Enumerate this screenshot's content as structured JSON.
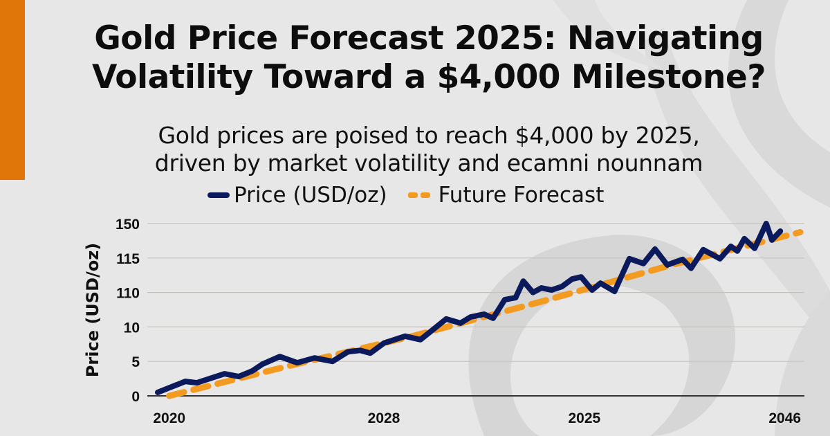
{
  "header": {
    "title_line1": "Gold Price Forecast 2025: Navigating",
    "title_line2": "Volatility Toward a $4,000 Milestone?",
    "subtitle_line1": "Gold prices are poised to reach $4,000 by 2025,",
    "subtitle_line2": "driven by market volatility and ecamni nounnam"
  },
  "colors": {
    "accent": "#e0760a",
    "price_series": "#0b1a5c",
    "forecast_series": "#f39a21",
    "background": "#e7e7e7"
  },
  "chart_data": {
    "type": "line",
    "title": "Gold Price Forecast 2025: Navigating Volatility Toward a $4,000 Milestone?",
    "xlabel": "",
    "ylabel": "Price (USD/oz)",
    "x_tick_labels": [
      "2020",
      "2028",
      "2025",
      "2046"
    ],
    "x_tick_positions": [
      0.018,
      0.352,
      0.664,
      0.976
    ],
    "y_tick_labels": [
      "0",
      "5",
      "10",
      "110",
      "115",
      "150"
    ],
    "y_note": "Tick labels are non-monotonic; series y-values below are expressed in tick-index units (0 = '0' tick, 5 = '150' tick), x in fraction of axis span.",
    "ylim": [
      0,
      5
    ],
    "xlim": [
      0,
      1
    ],
    "grid": true,
    "legend": {
      "placement": "top-left",
      "entries": [
        "Price (USD/oz)",
        "Future Forecast"
      ]
    },
    "series": [
      {
        "name": "Price (USD/oz)",
        "style": "solid",
        "x": [
          0,
          0.043,
          0.061,
          0.104,
          0.126,
          0.147,
          0.163,
          0.19,
          0.217,
          0.244,
          0.272,
          0.296,
          0.315,
          0.331,
          0.352,
          0.385,
          0.409,
          0.449,
          0.471,
          0.487,
          0.508,
          0.522,
          0.54,
          0.557,
          0.569,
          0.584,
          0.597,
          0.613,
          0.629,
          0.645,
          0.659,
          0.676,
          0.689,
          0.711,
          0.734,
          0.756,
          0.774,
          0.793,
          0.817,
          0.83,
          0.849,
          0.875,
          0.892,
          0.902,
          0.913,
          0.929,
          0.947,
          0.956,
          0.969
        ],
        "y": [
          0.1,
          0.42,
          0.38,
          0.64,
          0.56,
          0.72,
          0.92,
          1.14,
          0.96,
          1.1,
          1.0,
          1.28,
          1.32,
          1.24,
          1.53,
          1.73,
          1.63,
          2.23,
          2.11,
          2.29,
          2.37,
          2.25,
          2.79,
          2.85,
          3.33,
          3.0,
          3.13,
          3.07,
          3.17,
          3.39,
          3.45,
          3.07,
          3.27,
          3.03,
          3.98,
          3.84,
          4.26,
          3.8,
          3.96,
          3.7,
          4.24,
          3.98,
          4.34,
          4.2,
          4.56,
          4.28,
          5.0,
          4.52,
          4.78
        ]
      },
      {
        "name": "Future Forecast",
        "style": "dashed",
        "x": [
          0.018,
          0.2,
          0.4,
          0.6,
          0.8,
          1.0
        ],
        "y": [
          0.0,
          0.85,
          1.75,
          2.75,
          3.8,
          4.75
        ]
      }
    ]
  }
}
